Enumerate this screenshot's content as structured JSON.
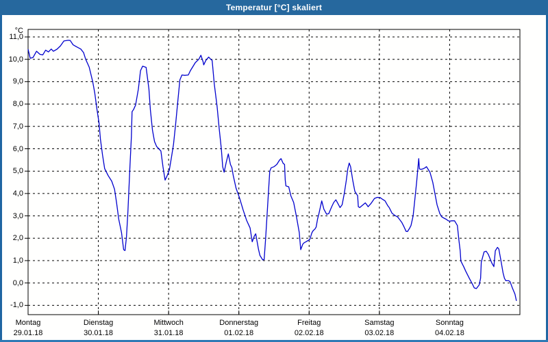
{
  "window": {
    "title": "Temperatur [°C] skaliert"
  },
  "colors": {
    "titlebar": "#26689e",
    "window_border": "#2066a2",
    "window_border_bottom": "#2e79b5",
    "line": "#0000cd",
    "grid": "#000000",
    "plot_border": "#000000"
  },
  "chart_data": {
    "type": "line",
    "title": "Temperatur [°C] skaliert",
    "y_unit": "°C",
    "ylim": [
      -1,
      11
    ],
    "y_tick_step": 1.0,
    "grid": "dashed, horizontal every 1.0 °C and vertical at each day boundary",
    "legend": "none",
    "y_tick_values": [
      11,
      10,
      9,
      8,
      7,
      6,
      5,
      4,
      3,
      2,
      1,
      0,
      -1
    ],
    "y_tick_labels": [
      "11,0",
      "10,0",
      "9,0",
      "8,0",
      "7,0",
      "6,0",
      "5,0",
      "4,0",
      "3,0",
      "2,0",
      "1,0",
      "0,0",
      "-1,0"
    ],
    "x_days": [
      {
        "weekday": "Montag",
        "date": "29.01.18"
      },
      {
        "weekday": "Dienstag",
        "date": "30.01.18"
      },
      {
        "weekday": "Mittwoch",
        "date": "31.01.18"
      },
      {
        "weekday": "Donnerstag",
        "date": "01.02.18"
      },
      {
        "weekday": "Freitag",
        "date": "02.02.18"
      },
      {
        "weekday": "Samstag",
        "date": "03.02.18"
      },
      {
        "weekday": "Sonntag",
        "date": "04.02.18"
      }
    ],
    "series": [
      {
        "name": "Temperatur [°C]",
        "color": "#0000cd",
        "x_unit": "days from Montag 29.01.18 00:00",
        "points": [
          [
            0,
            10.45
          ],
          [
            0.03,
            10.05
          ],
          [
            0.07,
            10.08
          ],
          [
            0.12,
            10.36
          ],
          [
            0.17,
            10.22
          ],
          [
            0.21,
            10.2
          ],
          [
            0.25,
            10.41
          ],
          [
            0.29,
            10.33
          ],
          [
            0.33,
            10.46
          ],
          [
            0.36,
            10.36
          ],
          [
            0.41,
            10.45
          ],
          [
            0.46,
            10.6
          ],
          [
            0.51,
            10.82
          ],
          [
            0.57,
            10.85
          ],
          [
            0.6,
            10.84
          ],
          [
            0.64,
            10.65
          ],
          [
            0.69,
            10.56
          ],
          [
            0.75,
            10.46
          ],
          [
            0.79,
            10.3
          ],
          [
            0.82,
            10.0
          ],
          [
            0.87,
            9.65
          ],
          [
            0.92,
            8.99
          ],
          [
            0.95,
            8.48
          ],
          [
            0.98,
            7.77
          ],
          [
            1.01,
            7.15
          ],
          [
            1.03,
            6.43
          ],
          [
            1.06,
            5.72
          ],
          [
            1.09,
            5.11
          ],
          [
            1.14,
            4.8
          ],
          [
            1.19,
            4.55
          ],
          [
            1.23,
            4.19
          ],
          [
            1.26,
            3.58
          ],
          [
            1.29,
            2.86
          ],
          [
            1.33,
            2.25
          ],
          [
            1.36,
            1.49
          ],
          [
            1.38,
            1.45
          ],
          [
            1.4,
            2.05
          ],
          [
            1.42,
            3.17
          ],
          [
            1.45,
            5.21
          ],
          [
            1.47,
            6.54
          ],
          [
            1.48,
            7.66
          ],
          [
            1.5,
            7.75
          ],
          [
            1.53,
            7.95
          ],
          [
            1.57,
            8.67
          ],
          [
            1.6,
            9.49
          ],
          [
            1.63,
            9.69
          ],
          [
            1.68,
            9.64
          ],
          [
            1.72,
            8.67
          ],
          [
            1.74,
            7.75
          ],
          [
            1.77,
            6.83
          ],
          [
            1.8,
            6.32
          ],
          [
            1.83,
            6.1
          ],
          [
            1.86,
            6.0
          ],
          [
            1.89,
            5.9
          ],
          [
            1.92,
            5.2
          ],
          [
            1.95,
            4.6
          ],
          [
            1.98,
            4.8
          ],
          [
            2.01,
            5.05
          ],
          [
            2.04,
            5.6
          ],
          [
            2.07,
            6.2
          ],
          [
            2.1,
            7.1
          ],
          [
            2.13,
            8.1
          ],
          [
            2.16,
            9.08
          ],
          [
            2.19,
            9.3
          ],
          [
            2.23,
            9.28
          ],
          [
            2.28,
            9.3
          ],
          [
            2.31,
            9.49
          ],
          [
            2.38,
            9.85
          ],
          [
            2.43,
            10.0
          ],
          [
            2.46,
            10.18
          ],
          [
            2.49,
            9.9
          ],
          [
            2.5,
            9.75
          ],
          [
            2.53,
            9.95
          ],
          [
            2.57,
            10.1
          ],
          [
            2.6,
            10.0
          ],
          [
            2.62,
            9.95
          ],
          [
            2.65,
            8.9
          ],
          [
            2.69,
            7.9
          ],
          [
            2.72,
            6.9
          ],
          [
            2.75,
            6.0
          ],
          [
            2.77,
            5.2
          ],
          [
            2.79,
            4.95
          ],
          [
            2.82,
            5.4
          ],
          [
            2.85,
            5.77
          ],
          [
            2.88,
            5.3
          ],
          [
            2.9,
            5.16
          ],
          [
            2.92,
            4.8
          ],
          [
            2.96,
            4.24
          ],
          [
            3.01,
            3.8
          ],
          [
            3.06,
            3.27
          ],
          [
            3.11,
            2.8
          ],
          [
            3.16,
            2.46
          ],
          [
            3.19,
            1.84
          ],
          [
            3.22,
            2.1
          ],
          [
            3.24,
            2.2
          ],
          [
            3.28,
            1.5
          ],
          [
            3.3,
            1.23
          ],
          [
            3.34,
            1.03
          ],
          [
            3.36,
            1.05
          ],
          [
            3.38,
            1.95
          ],
          [
            3.41,
            3.5
          ],
          [
            3.44,
            5.0
          ],
          [
            3.46,
            5.15
          ],
          [
            3.5,
            5.2
          ],
          [
            3.54,
            5.3
          ],
          [
            3.58,
            5.5
          ],
          [
            3.6,
            5.56
          ],
          [
            3.63,
            5.35
          ],
          [
            3.65,
            5.3
          ],
          [
            3.66,
            4.6
          ],
          [
            3.67,
            4.34
          ],
          [
            3.71,
            4.3
          ],
          [
            3.74,
            3.9
          ],
          [
            3.78,
            3.6
          ],
          [
            3.82,
            2.96
          ],
          [
            3.86,
            2.25
          ],
          [
            3.88,
            1.49
          ],
          [
            3.91,
            1.74
          ],
          [
            3.93,
            1.8
          ],
          [
            3.96,
            1.85
          ],
          [
            4.01,
            1.95
          ],
          [
            4.04,
            2.25
          ],
          [
            4.06,
            2.35
          ],
          [
            4.08,
            2.4
          ],
          [
            4.1,
            2.5
          ],
          [
            4.12,
            2.86
          ],
          [
            4.14,
            3.1
          ],
          [
            4.18,
            3.67
          ],
          [
            4.21,
            3.3
          ],
          [
            4.25,
            3.07
          ],
          [
            4.28,
            3.1
          ],
          [
            4.32,
            3.4
          ],
          [
            4.35,
            3.6
          ],
          [
            4.38,
            3.72
          ],
          [
            4.41,
            3.55
          ],
          [
            4.44,
            3.37
          ],
          [
            4.47,
            3.5
          ],
          [
            4.5,
            4.0
          ],
          [
            4.53,
            4.6
          ],
          [
            4.55,
            5.1
          ],
          [
            4.57,
            5.36
          ],
          [
            4.59,
            5.2
          ],
          [
            4.62,
            4.6
          ],
          [
            4.65,
            4.1
          ],
          [
            4.69,
            3.9
          ],
          [
            4.7,
            3.41
          ],
          [
            4.72,
            3.37
          ],
          [
            4.75,
            3.45
          ],
          [
            4.8,
            3.58
          ],
          [
            4.82,
            3.5
          ],
          [
            4.84,
            3.41
          ],
          [
            4.88,
            3.55
          ],
          [
            4.93,
            3.78
          ],
          [
            4.97,
            3.83
          ],
          [
            5.01,
            3.82
          ],
          [
            5.04,
            3.75
          ],
          [
            5.08,
            3.67
          ],
          [
            5.12,
            3.45
          ],
          [
            5.14,
            3.37
          ],
          [
            5.18,
            3.12
          ],
          [
            5.22,
            3.02
          ],
          [
            5.26,
            2.95
          ],
          [
            5.28,
            2.87
          ],
          [
            5.32,
            2.7
          ],
          [
            5.35,
            2.51
          ],
          [
            5.38,
            2.31
          ],
          [
            5.4,
            2.3
          ],
          [
            5.43,
            2.45
          ],
          [
            5.45,
            2.57
          ],
          [
            5.48,
            3.0
          ],
          [
            5.5,
            3.58
          ],
          [
            5.53,
            4.5
          ],
          [
            5.56,
            5.56
          ],
          [
            5.57,
            5.1
          ],
          [
            5.59,
            5.08
          ],
          [
            5.62,
            5.1
          ],
          [
            5.65,
            5.15
          ],
          [
            5.67,
            5.2
          ],
          [
            5.7,
            5.05
          ],
          [
            5.72,
            4.95
          ],
          [
            5.76,
            4.5
          ],
          [
            5.79,
            4.0
          ],
          [
            5.82,
            3.5
          ],
          [
            5.86,
            3.1
          ],
          [
            5.89,
            2.95
          ],
          [
            5.93,
            2.88
          ],
          [
            5.95,
            2.85
          ],
          [
            5.98,
            2.78
          ],
          [
            6.0,
            2.76
          ],
          [
            6.03,
            2.78
          ],
          [
            6.07,
            2.78
          ],
          [
            6.11,
            2.57
          ],
          [
            6.13,
            1.95
          ],
          [
            6.15,
            1.44
          ],
          [
            6.16,
            0.98
          ],
          [
            6.2,
            0.73
          ],
          [
            6.23,
            0.52
          ],
          [
            6.28,
            0.21
          ],
          [
            6.33,
            -0.09
          ],
          [
            6.35,
            -0.22
          ],
          [
            6.38,
            -0.25
          ],
          [
            6.42,
            -0.09
          ],
          [
            6.44,
            0.21
          ],
          [
            6.45,
            0.93
          ],
          [
            6.49,
            1.39
          ],
          [
            6.52,
            1.42
          ],
          [
            6.55,
            1.28
          ],
          [
            6.6,
            0.89
          ],
          [
            6.63,
            0.73
          ],
          [
            6.65,
            1.44
          ],
          [
            6.68,
            1.59
          ],
          [
            6.7,
            1.52
          ],
          [
            6.73,
            1.0
          ],
          [
            6.76,
            0.45
          ],
          [
            6.78,
            0.21
          ],
          [
            6.8,
            0.1
          ],
          [
            6.84,
            0.1
          ],
          [
            6.86,
            0.06
          ],
          [
            6.89,
            -0.2
          ],
          [
            6.93,
            -0.5
          ],
          [
            6.95,
            -0.8
          ]
        ]
      }
    ]
  }
}
